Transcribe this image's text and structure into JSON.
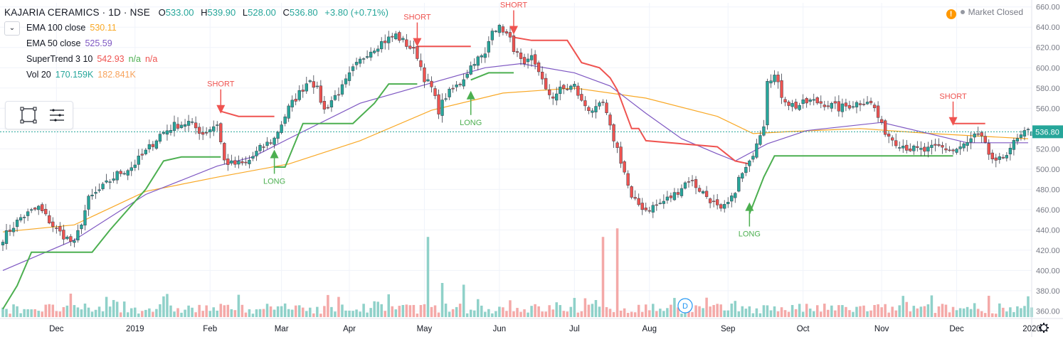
{
  "header": {
    "symbol": "KAJARIA CERAMICS · 1D · NSE",
    "ohlc": [
      {
        "label": "O",
        "value": "533.00"
      },
      {
        "label": "H",
        "value": "539.90"
      },
      {
        "label": "L",
        "value": "528.00"
      },
      {
        "label": "C",
        "value": "536.80"
      }
    ],
    "change": "+3.80 (+0.71%)",
    "market_status": "Market Closed",
    "warning_glyph": "!"
  },
  "indicators": [
    {
      "name": "EMA 100 close",
      "values": [
        "530.11"
      ],
      "colors": [
        "#f9a825"
      ]
    },
    {
      "name": "EMA 50 close",
      "values": [
        "525.59"
      ],
      "colors": [
        "#7e57c2"
      ]
    },
    {
      "name": "SuperTrend 3 10",
      "values": [
        "542.93",
        "n/a",
        "n/a"
      ],
      "colors": [
        "#ef5350",
        "#4caf50",
        "#ef5350"
      ]
    },
    {
      "name": "Vol 20",
      "values": [
        "170.159K",
        "182.841K"
      ],
      "colors": [
        "#26a69a",
        "#f7a35c"
      ]
    }
  ],
  "colors": {
    "up": "#26a69a",
    "down": "#ef5350",
    "ema100": "#f9a825",
    "ema50": "#7e57c2",
    "st_up": "#4caf50",
    "st_down": "#ef5350",
    "vol_up": "#8fd1c9",
    "vol_down": "#f4a9a8",
    "grid": "#f0f3fa",
    "axis_text": "#787b86"
  },
  "chart_data": {
    "type": "candlestick",
    "title": "KAJARIA CERAMICS · 1D · NSE",
    "x_tick_labels": [
      "Dec",
      "2019",
      "Feb",
      "Mar",
      "Apr",
      "May",
      "Jun",
      "Jul",
      "Aug",
      "Sep",
      "Oct",
      "Nov",
      "Dec",
      "2020"
    ],
    "x_tick_index": [
      15,
      37,
      58,
      78,
      97,
      118,
      139,
      160,
      181,
      203,
      224,
      246,
      267,
      288
    ],
    "y_ticks": [
      360,
      380,
      400,
      420,
      440,
      460,
      480,
      500,
      520,
      540,
      560,
      580,
      600,
      620,
      640,
      660
    ],
    "ylim": [
      354,
      664
    ],
    "last_price": 536.8,
    "last_price_label": "536.80",
    "anchors": [
      [
        0,
        432
      ],
      [
        5,
        452
      ],
      [
        10,
        462
      ],
      [
        15,
        440
      ],
      [
        20,
        426
      ],
      [
        24,
        470
      ],
      [
        28,
        482
      ],
      [
        32,
        495
      ],
      [
        36,
        502
      ],
      [
        40,
        517
      ],
      [
        44,
        534
      ],
      [
        48,
        543
      ],
      [
        52,
        546
      ],
      [
        56,
        535
      ],
      [
        60,
        545
      ],
      [
        62,
        508
      ],
      [
        64,
        505
      ],
      [
        68,
        505
      ],
      [
        72,
        520
      ],
      [
        76,
        530
      ],
      [
        80,
        560
      ],
      [
        84,
        580
      ],
      [
        86,
        590
      ],
      [
        88,
        578
      ],
      [
        90,
        558
      ],
      [
        92,
        568
      ],
      [
        95,
        580
      ],
      [
        98,
        598
      ],
      [
        102,
        615
      ],
      [
        106,
        625
      ],
      [
        110,
        632
      ],
      [
        114,
        620
      ],
      [
        116,
        612
      ],
      [
        118,
        590
      ],
      [
        120,
        580
      ],
      [
        122,
        558
      ],
      [
        124,
        572
      ],
      [
        128,
        585
      ],
      [
        132,
        607
      ],
      [
        135,
        612
      ],
      [
        137,
        640
      ],
      [
        140,
        638
      ],
      [
        142,
        627
      ],
      [
        144,
        612
      ],
      [
        146,
        600
      ],
      [
        148,
        610
      ],
      [
        150,
        598
      ],
      [
        152,
        576
      ],
      [
        154,
        572
      ],
      [
        156,
        578
      ],
      [
        158,
        580
      ],
      [
        160,
        582
      ],
      [
        162,
        566
      ],
      [
        164,
        560
      ],
      [
        166,
        558
      ],
      [
        168,
        565
      ],
      [
        170,
        540
      ],
      [
        172,
        520
      ],
      [
        174,
        497
      ],
      [
        176,
        470
      ],
      [
        180,
        460
      ],
      [
        184,
        466
      ],
      [
        188,
        475
      ],
      [
        192,
        490
      ],
      [
        195,
        480
      ],
      [
        198,
        470
      ],
      [
        201,
        458
      ],
      [
        204,
        470
      ],
      [
        206,
        490
      ],
      [
        209,
        505
      ],
      [
        211,
        528
      ],
      [
        213,
        545
      ],
      [
        214,
        590
      ],
      [
        216,
        592
      ],
      [
        218,
        573
      ],
      [
        220,
        565
      ],
      [
        222,
        562
      ],
      [
        226,
        567
      ],
      [
        230,
        565
      ],
      [
        234,
        560
      ],
      [
        238,
        564
      ],
      [
        242,
        568
      ],
      [
        244,
        560
      ],
      [
        246,
        542
      ],
      [
        248,
        533
      ],
      [
        250,
        527
      ],
      [
        254,
        520
      ],
      [
        258,
        518
      ],
      [
        262,
        522
      ],
      [
        266,
        518
      ],
      [
        270,
        525
      ],
      [
        272,
        533
      ],
      [
        274,
        530
      ],
      [
        276,
        515
      ],
      [
        278,
        505
      ],
      [
        280,
        512
      ],
      [
        282,
        522
      ],
      [
        285,
        532
      ],
      [
        287,
        537
      ]
    ],
    "ema100_points": [
      [
        0,
        438
      ],
      [
        20,
        445
      ],
      [
        40,
        478
      ],
      [
        60,
        492
      ],
      [
        80,
        505
      ],
      [
        100,
        528
      ],
      [
        120,
        558
      ],
      [
        140,
        575
      ],
      [
        160,
        580
      ],
      [
        180,
        570
      ],
      [
        200,
        552
      ],
      [
        210,
        535
      ],
      [
        220,
        537
      ],
      [
        240,
        540
      ],
      [
        260,
        535
      ],
      [
        287,
        530
      ]
    ],
    "ema50_points": [
      [
        0,
        400
      ],
      [
        20,
        430
      ],
      [
        40,
        475
      ],
      [
        60,
        503
      ],
      [
        70,
        512
      ],
      [
        80,
        530
      ],
      [
        100,
        565
      ],
      [
        120,
        585
      ],
      [
        135,
        600
      ],
      [
        145,
        604
      ],
      [
        160,
        595
      ],
      [
        170,
        582
      ],
      [
        180,
        555
      ],
      [
        190,
        530
      ],
      [
        200,
        515
      ],
      [
        205,
        508
      ],
      [
        214,
        525
      ],
      [
        225,
        538
      ],
      [
        246,
        546
      ],
      [
        270,
        526
      ],
      [
        287,
        526
      ]
    ],
    "supertrend_segments": [
      {
        "trend": "up",
        "points": [
          [
            0,
            362
          ],
          [
            4,
            385
          ],
          [
            8,
            418
          ],
          [
            25,
            418
          ],
          [
            30,
            440
          ],
          [
            40,
            480
          ],
          [
            45,
            508
          ],
          [
            50,
            512
          ],
          [
            61,
            512
          ]
        ]
      },
      {
        "trend": "down",
        "points": [
          [
            61,
            557
          ],
          [
            66,
            552
          ],
          [
            76,
            552
          ]
        ]
      },
      {
        "trend": "up",
        "points": [
          [
            76,
            502
          ],
          [
            79,
            502
          ],
          [
            84,
            545
          ],
          [
            98,
            545
          ],
          [
            104,
            565
          ],
          [
            108,
            584
          ],
          [
            116,
            584
          ]
        ]
      },
      {
        "trend": "down",
        "points": [
          [
            116,
            621
          ],
          [
            131,
            621
          ]
        ]
      },
      {
        "trend": "up",
        "points": [
          [
            131,
            588
          ],
          [
            136,
            595
          ],
          [
            143,
            595
          ]
        ]
      },
      {
        "trend": "down",
        "points": [
          [
            143,
            630
          ],
          [
            148,
            627
          ],
          [
            158,
            627
          ],
          [
            162,
            605
          ],
          [
            167,
            600
          ],
          [
            170,
            590
          ],
          [
            172,
            578
          ],
          [
            176,
            540
          ],
          [
            178,
            540
          ],
          [
            180,
            528
          ],
          [
            200,
            522
          ],
          [
            205,
            508
          ],
          [
            209,
            505
          ]
        ]
      },
      {
        "trend": "up",
        "points": [
          [
            209,
            456
          ],
          [
            213,
            492
          ],
          [
            216,
            513
          ],
          [
            266,
            513
          ]
        ]
      },
      {
        "trend": "down",
        "points": [
          [
            266,
            545
          ],
          [
            275,
            545
          ]
        ]
      }
    ],
    "signals": [
      {
        "label": "SHORT",
        "type": "short",
        "index": 61,
        "price": 552
      },
      {
        "label": "LONG",
        "type": "long",
        "index": 76,
        "price": 522
      },
      {
        "label": "SHORT",
        "type": "short",
        "index": 116,
        "price": 618
      },
      {
        "label": "LONG",
        "type": "long",
        "index": 131,
        "price": 580
      },
      {
        "label": "SHORT",
        "type": "short",
        "index": 143,
        "price": 630
      },
      {
        "label": "LONG",
        "type": "long",
        "index": 209,
        "price": 470
      },
      {
        "label": "SHORT",
        "type": "short",
        "index": 266,
        "price": 540
      }
    ],
    "volume_spikes": [
      [
        119,
        0.47
      ],
      [
        168,
        0.47
      ],
      [
        123,
        0.2
      ],
      [
        129,
        0.19
      ],
      [
        172,
        0.52
      ],
      [
        166,
        0.1
      ],
      [
        105,
        0.09
      ],
      [
        32,
        0.09
      ]
    ],
    "dividend_marker": {
      "label": "D",
      "index": 191
    }
  }
}
